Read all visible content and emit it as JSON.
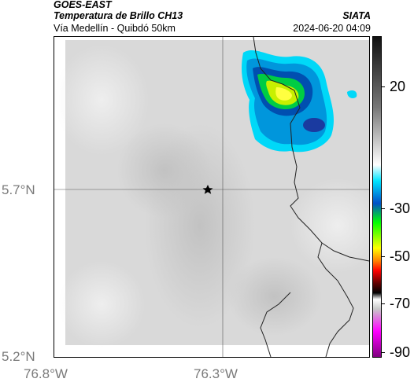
{
  "header": {
    "satellite": "GOES-EAST",
    "product": "Temperatura de Brillo CH13",
    "region": "Vía Medellín - Quibdó 50km",
    "org": "SIATA",
    "datetime": "2024-06-20 04:09"
  },
  "map": {
    "lat_labels": [
      "5.7°N",
      "5.2°N"
    ],
    "lon_labels": [
      "76.8°W",
      "76.3°W"
    ],
    "marker": "star-marker"
  },
  "colorbar": {
    "labels": [
      "20",
      "-30",
      "-50",
      "-70",
      "-90"
    ],
    "colors": [
      "#111111",
      "#ffffff",
      "#00e5ff",
      "#0050c8",
      "#00ff00",
      "#ffff00",
      "#ff0000",
      "#000000",
      "#c8c8c8",
      "#ff00ff"
    ]
  }
}
